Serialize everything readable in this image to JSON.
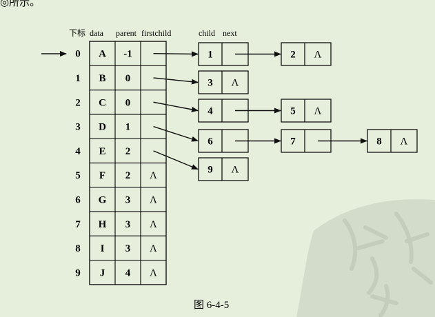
{
  "top_fragment": "◎所示。",
  "headers": {
    "index": "下标",
    "data": "data",
    "parent": "parent",
    "firstchild": "firstchild",
    "child": "child",
    "next": "next"
  },
  "table_rows": [
    {
      "index": "0",
      "data": "A",
      "parent": "-1",
      "firstchild": ""
    },
    {
      "index": "1",
      "data": "B",
      "parent": "0",
      "firstchild": ""
    },
    {
      "index": "2",
      "data": "C",
      "parent": "0",
      "firstchild": ""
    },
    {
      "index": "3",
      "data": "D",
      "parent": "1",
      "firstchild": ""
    },
    {
      "index": "4",
      "data": "E",
      "parent": "2",
      "firstchild": ""
    },
    {
      "index": "5",
      "data": "F",
      "parent": "2",
      "firstchild": "Λ"
    },
    {
      "index": "6",
      "data": "G",
      "parent": "3",
      "firstchild": "Λ"
    },
    {
      "index": "7",
      "data": "H",
      "parent": "3",
      "firstchild": "Λ"
    },
    {
      "index": "8",
      "data": "I",
      "parent": "3",
      "firstchild": "Λ"
    },
    {
      "index": "9",
      "data": "J",
      "parent": "4",
      "firstchild": "Λ"
    }
  ],
  "child_lists": [
    {
      "from_row": 0,
      "nodes": [
        "1",
        "2"
      ]
    },
    {
      "from_row": 1,
      "nodes": [
        "3"
      ]
    },
    {
      "from_row": 2,
      "nodes": [
        "4",
        "5"
      ]
    },
    {
      "from_row": 3,
      "nodes": [
        "6",
        "7",
        "8"
      ]
    },
    {
      "from_row": 4,
      "nodes": [
        "9"
      ]
    }
  ],
  "null_symbol": "Λ",
  "caption": "图 6-4-5",
  "colors": {
    "background": "#e6efdb",
    "stroke": "#111111",
    "watermark": "#c9d2c1"
  }
}
